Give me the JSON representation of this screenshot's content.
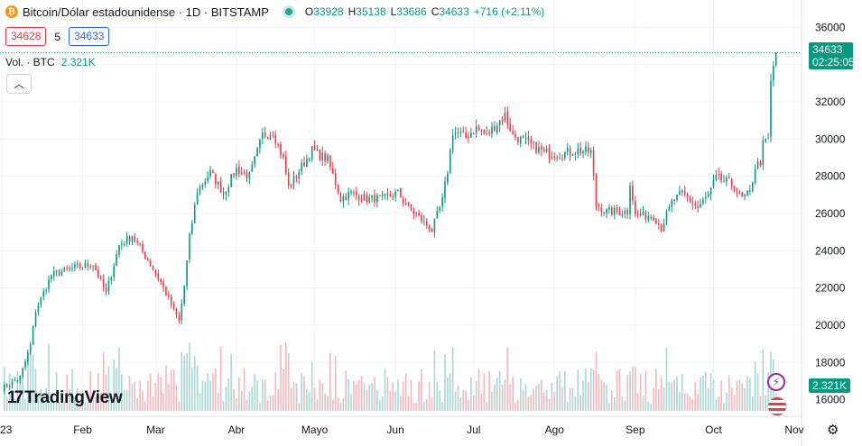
{
  "header": {
    "coin_symbol": "₿",
    "title": "Bitcoin/Dólar estadounidense · 1D · BITSTAMP",
    "o_label": "O",
    "o_value": "33928",
    "h_label": "H",
    "h_value": "35138",
    "l_label": "L",
    "l_value": "33686",
    "c_label": "C",
    "c_value": "34633",
    "change": "+716 (+2.11%)"
  },
  "quote": {
    "bid": "34628",
    "spread": "5",
    "ask": "34633"
  },
  "volume_legend": {
    "label": "Vol. · BTC",
    "value": "2.321K"
  },
  "collapse_icon": "chevron-up-icon",
  "price_tag": {
    "price": "34633",
    "countdown": "02:25:05"
  },
  "volume_tag": "2.321K",
  "logo_text": "TradingView",
  "logo_mark": "17",
  "colors": {
    "up": "#089981",
    "down": "#f23645",
    "up_vol": "#a8d8d2",
    "down_vol": "#f5b6bd",
    "grid": "#f0f3fa",
    "text": "#131722"
  },
  "chart_data": {
    "type": "candlestick",
    "title": "Bitcoin/Dólar estadounidense · 1D · BITSTAMP",
    "y_ticks": [
      18000,
      20000,
      22000,
      24000,
      26000,
      28000,
      30000,
      32000,
      34000,
      36000
    ],
    "partial_tick": "16000",
    "ylim": [
      15400,
      36600
    ],
    "x_ticks": [
      "23",
      "Feb",
      "Mar",
      "Abr",
      "Mayo",
      "Jun",
      "Jul",
      "Ago",
      "Sep",
      "Oct",
      "Nov"
    ],
    "x_range": [
      "2023-01-01",
      "2023-11-01"
    ],
    "last_price": 34633,
    "grid": true,
    "series_anchors": [
      [
        "2023-01-01",
        16600
      ],
      [
        "2023-01-08",
        17200
      ],
      [
        "2023-01-12",
        18900
      ],
      [
        "2023-01-14",
        20800
      ],
      [
        "2023-01-20",
        22700
      ],
      [
        "2023-01-29",
        23100
      ],
      [
        "2023-02-05",
        23300
      ],
      [
        "2023-02-10",
        21700
      ],
      [
        "2023-02-15",
        24300
      ],
      [
        "2023-02-20",
        24800
      ],
      [
        "2023-02-26",
        23500
      ],
      [
        "2023-03-03",
        22300
      ],
      [
        "2023-03-10",
        20200
      ],
      [
        "2023-03-12",
        22100
      ],
      [
        "2023-03-14",
        24700
      ],
      [
        "2023-03-17",
        27200
      ],
      [
        "2023-03-22",
        28200
      ],
      [
        "2023-03-27",
        27100
      ],
      [
        "2023-04-01",
        28400
      ],
      [
        "2023-04-06",
        28000
      ],
      [
        "2023-04-11",
        30200
      ],
      [
        "2023-04-15",
        30400
      ],
      [
        "2023-04-19",
        28900
      ],
      [
        "2023-04-21",
        27400
      ],
      [
        "2023-04-26",
        28500
      ],
      [
        "2023-04-30",
        29400
      ],
      [
        "2023-05-06",
        28900
      ],
      [
        "2023-05-11",
        26800
      ],
      [
        "2023-05-15",
        27100
      ],
      [
        "2023-05-21",
        26800
      ],
      [
        "2023-05-27",
        26800
      ],
      [
        "2023-06-02",
        27100
      ],
      [
        "2023-06-06",
        26300
      ],
      [
        "2023-06-10",
        25800
      ],
      [
        "2023-06-15",
        25100
      ],
      [
        "2023-06-19",
        26700
      ],
      [
        "2023-06-21",
        28300
      ],
      [
        "2023-06-23",
        30400
      ],
      [
        "2023-06-28",
        30100
      ],
      [
        "2023-07-02",
        30600
      ],
      [
        "2023-07-06",
        30200
      ],
      [
        "2023-07-13",
        31300
      ],
      [
        "2023-07-16",
        30200
      ],
      [
        "2023-07-20",
        29900
      ],
      [
        "2023-07-28",
        29300
      ],
      [
        "2023-08-03",
        29200
      ],
      [
        "2023-08-10",
        29400
      ],
      [
        "2023-08-15",
        29300
      ],
      [
        "2023-08-17",
        26500
      ],
      [
        "2023-08-21",
        26100
      ],
      [
        "2023-08-29",
        26100
      ],
      [
        "2023-08-30",
        27700
      ],
      [
        "2023-09-01",
        25900
      ],
      [
        "2023-09-08",
        25900
      ],
      [
        "2023-09-11",
        25200
      ],
      [
        "2023-09-15",
        26600
      ],
      [
        "2023-09-19",
        27100
      ],
      [
        "2023-09-25",
        26300
      ],
      [
        "2023-09-29",
        27000
      ],
      [
        "2023-10-02",
        27900
      ],
      [
        "2023-10-08",
        27600
      ],
      [
        "2023-10-12",
        26800
      ],
      [
        "2023-10-15",
        27100
      ],
      [
        "2023-10-17",
        28500
      ],
      [
        "2023-10-19",
        28800
      ],
      [
        "2023-10-20",
        29700
      ],
      [
        "2023-10-22",
        30000
      ],
      [
        "2023-10-23",
        33000
      ],
      [
        "2023-10-24",
        33900
      ],
      [
        "2023-10-25",
        34633
      ]
    ],
    "volume": {
      "unit": "BTC",
      "last": "2.321K"
    }
  }
}
